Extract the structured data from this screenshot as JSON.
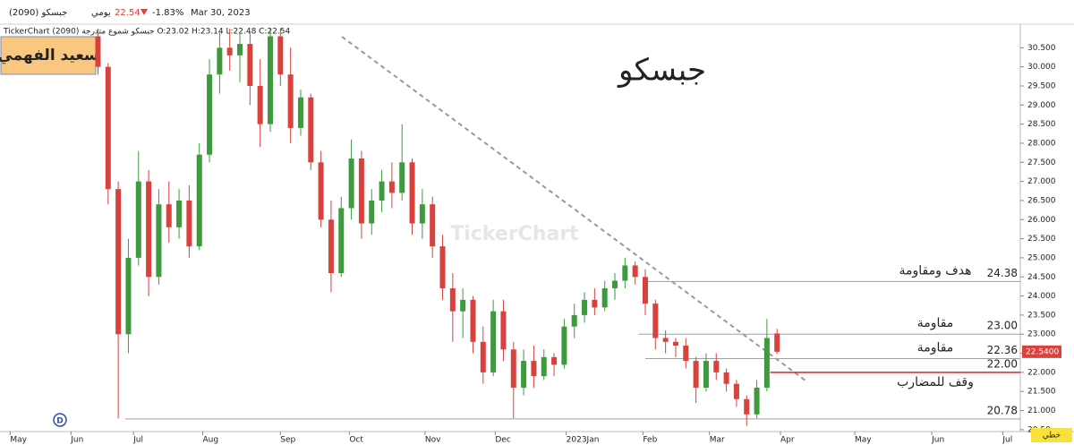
{
  "header": {
    "symbol": "جبسكو (2090)",
    "period": "يومي",
    "price": "22.54",
    "change": "-1.83%",
    "date": "Mar 30, 2023"
  },
  "badge": "سعيد الفهمي",
  "watermark": "TickerChart",
  "chart_style": "خطي",
  "chart_data": {
    "type": "candlestick",
    "title": "جبسكو",
    "subtitle": "TickerChart جبسكو شموع متدرجة (2090) O:23.02 H:23.14 L:22.48 C:22.54",
    "up_color": "#3d9a3d",
    "down_color": "#d9413d",
    "x": [
      29,
      32,
      35,
      38,
      41,
      44,
      47,
      50,
      53,
      56,
      59,
      62,
      65,
      68,
      71,
      74,
      77,
      80,
      83,
      86,
      89,
      92,
      95,
      98,
      101,
      104,
      107,
      110,
      113,
      116,
      119,
      122,
      125,
      128,
      131,
      134,
      137,
      140,
      143,
      146,
      149,
      152,
      155,
      158,
      161,
      164,
      167,
      170,
      173,
      176,
      179,
      182,
      185,
      188,
      191,
      194,
      197,
      200,
      203,
      206,
      209,
      212,
      215,
      218,
      221,
      224,
      227,
      230
    ],
    "open": [
      30.8,
      30.0,
      26.8,
      23.0,
      25.0,
      27.0,
      24.5,
      26.4,
      25.8,
      26.5,
      25.3,
      27.7,
      29.8,
      30.5,
      30.3,
      30.6,
      29.5,
      28.5,
      30.8,
      29.8,
      28.4,
      29.2,
      27.5,
      26.0,
      24.6,
      26.3,
      27.6,
      25.9,
      26.5,
      27.0,
      26.7,
      27.5,
      25.9,
      26.4,
      25.3,
      24.2,
      23.6,
      23.9,
      22.8,
      22.0,
      23.6,
      22.6,
      21.6,
      22.3,
      21.9,
      22.4,
      22.2,
      23.2,
      23.5,
      23.9,
      23.7,
      24.2,
      24.4,
      24.8,
      24.5,
      23.8,
      22.9,
      22.8,
      22.7,
      22.3,
      21.6,
      22.3,
      22.0,
      21.7,
      21.3,
      20.9,
      21.6,
      23.02
    ],
    "high": [
      31.0,
      30.1,
      27.0,
      25.5,
      27.8,
      27.3,
      26.8,
      27.0,
      26.8,
      26.9,
      28.0,
      30.2,
      30.9,
      31.0,
      30.9,
      30.9,
      30.2,
      31.0,
      31.0,
      30.5,
      29.4,
      29.3,
      27.8,
      26.5,
      26.6,
      28.1,
      27.8,
      26.8,
      27.3,
      27.5,
      28.5,
      27.6,
      26.8,
      26.6,
      25.6,
      24.6,
      24.2,
      24.0,
      23.2,
      23.9,
      23.9,
      22.8,
      22.6,
      22.7,
      22.6,
      22.5,
      23.4,
      23.8,
      24.1,
      24.2,
      24.4,
      24.6,
      25.0,
      24.9,
      24.7,
      23.9,
      23.1,
      22.9,
      22.9,
      22.4,
      22.5,
      22.5,
      22.1,
      21.8,
      21.4,
      21.8,
      23.4,
      23.14
    ],
    "low": [
      29.8,
      26.4,
      20.8,
      22.5,
      24.8,
      24.0,
      24.3,
      25.4,
      25.5,
      25.0,
      25.2,
      27.5,
      29.3,
      29.9,
      29.6,
      29.0,
      27.9,
      28.3,
      29.5,
      28.0,
      28.2,
      27.3,
      25.8,
      24.1,
      24.5,
      26.0,
      25.5,
      25.6,
      26.2,
      26.3,
      26.5,
      25.6,
      25.5,
      25.0,
      23.9,
      22.8,
      22.9,
      22.5,
      21.7,
      21.9,
      22.3,
      20.8,
      21.4,
      21.6,
      21.8,
      21.9,
      22.1,
      22.9,
      23.3,
      23.5,
      23.6,
      23.9,
      24.2,
      24.3,
      23.5,
      22.6,
      22.5,
      22.4,
      22.1,
      21.2,
      21.5,
      21.8,
      21.5,
      21.1,
      20.6,
      20.8,
      21.5,
      22.48
    ],
    "close": [
      30.0,
      26.8,
      23.0,
      25.0,
      27.0,
      24.5,
      26.4,
      25.8,
      26.5,
      25.3,
      27.7,
      29.8,
      30.5,
      30.3,
      30.6,
      29.5,
      28.5,
      30.8,
      29.8,
      28.4,
      29.2,
      27.5,
      26.0,
      24.6,
      26.3,
      27.6,
      25.9,
      26.5,
      27.0,
      26.7,
      27.5,
      25.9,
      26.4,
      25.3,
      24.2,
      23.6,
      23.9,
      22.8,
      22.0,
      23.6,
      22.6,
      21.6,
      22.3,
      21.9,
      22.4,
      22.2,
      23.2,
      23.5,
      23.9,
      23.7,
      24.2,
      24.4,
      24.8,
      24.5,
      23.8,
      22.9,
      22.8,
      22.7,
      22.3,
      21.6,
      22.3,
      22.0,
      21.7,
      21.3,
      20.9,
      21.6,
      22.9,
      22.54
    ],
    "xlim": [
      0,
      302
    ],
    "xticks": [
      {
        "value": 3,
        "label": "May"
      },
      {
        "value": 21,
        "label": "Jun"
      },
      {
        "value": 39.5,
        "label": "Jul"
      },
      {
        "value": 60,
        "label": "Aug"
      },
      {
        "value": 83,
        "label": "Sep"
      },
      {
        "value": 103.4,
        "label": "Oct"
      },
      {
        "value": 125.8,
        "label": "Nov"
      },
      {
        "value": 146.6,
        "label": "Dec"
      },
      {
        "value": 167.6,
        "label": "2023Jan"
      },
      {
        "value": 190.3,
        "label": "Feb"
      },
      {
        "value": 210,
        "label": "Mar"
      },
      {
        "value": 231,
        "label": "Apr"
      },
      {
        "value": 253,
        "label": "May"
      },
      {
        "value": 275.8,
        "label": "Jun"
      },
      {
        "value": 296.8,
        "label": "Jul"
      }
    ],
    "ylim": [
      20.45,
      31.0
    ],
    "yticks": [
      {
        "value": 20.5,
        "label": "20.50"
      },
      {
        "value": 21,
        "label": "21.000"
      },
      {
        "value": 21.5,
        "label": "21.500"
      },
      {
        "value": 22,
        "label": "22.000"
      },
      {
        "value": 22.5,
        "label": "22.500"
      },
      {
        "value": 23,
        "label": "23.000"
      },
      {
        "value": 23.5,
        "label": "23.500"
      },
      {
        "value": 24,
        "label": "24.000"
      },
      {
        "value": 24.5,
        "label": "24.500"
      },
      {
        "value": 25,
        "label": "25.000"
      },
      {
        "value": 25.5,
        "label": "25.500"
      },
      {
        "value": 26,
        "label": "26.000"
      },
      {
        "value": 26.5,
        "label": "26.500"
      },
      {
        "value": 27,
        "label": "27.000"
      },
      {
        "value": 27.5,
        "label": "27.500"
      },
      {
        "value": 28,
        "label": "28.000"
      },
      {
        "value": 28.5,
        "label": "28.500"
      },
      {
        "value": 29,
        "label": "29.000"
      },
      {
        "value": 29.5,
        "label": "29.500"
      },
      {
        "value": 30,
        "label": "30.000"
      },
      {
        "value": 30.5,
        "label": "30.500"
      }
    ],
    "last_price": {
      "value": 22.54,
      "label": "22.5400"
    },
    "levels": [
      {
        "value": 24.38,
        "label": "24.38",
        "note": "هدف ومقاومة",
        "note_side": "above",
        "x_start": 191,
        "color": "#a0a0a0"
      },
      {
        "value": 23,
        "label": "23.00",
        "note": "مقاومة",
        "note_side": "above",
        "x_start": 189,
        "color": "#a0a0a0"
      },
      {
        "value": 22.36,
        "label": "22.36",
        "note": "مقاومة",
        "note_side": "above",
        "x_start": 191,
        "color": "#a0a0a0"
      },
      {
        "value": 22,
        "label": "22.00",
        "note": "وقف للمضارب",
        "note_side": "below",
        "x_start": 228,
        "color": "#e02020"
      },
      {
        "value": 20.78,
        "label": "20.78",
        "x_start": 37,
        "color": "#a0a0a0"
      }
    ]
  }
}
